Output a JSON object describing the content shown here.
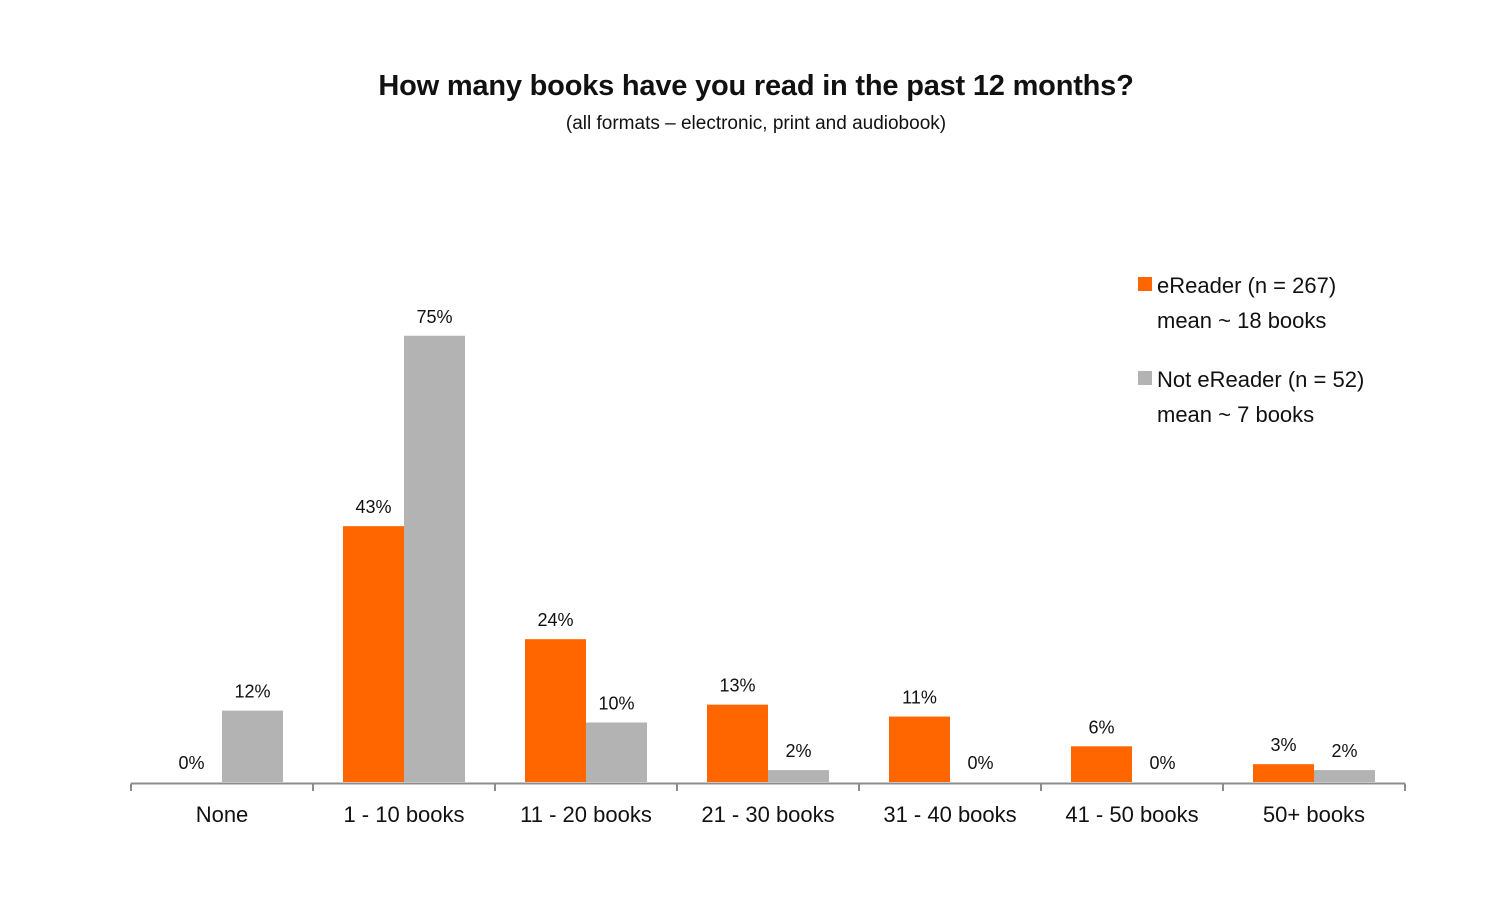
{
  "chart_data": {
    "type": "bar",
    "title": "How many books have you read in the past 12 months?",
    "subtitle": "(all formats – electronic, print and audiobook)",
    "categories": [
      "None",
      "1 - 10 books",
      "11 - 20 books",
      "21 - 30 books",
      "31 - 40 books",
      "41 - 50 books",
      "50+ books"
    ],
    "series": [
      {
        "name": "eReader (n = 267)",
        "note": "mean ~ 18 books",
        "color": "#ff6600",
        "values": [
          0,
          43,
          24,
          13,
          11,
          6,
          3
        ],
        "labels": [
          "0%",
          "43%",
          "24%",
          "13%",
          "11%",
          "6%",
          "3%"
        ]
      },
      {
        "name": "Not eReader (n = 52)",
        "note": "mean ~ 7 books",
        "color": "#b3b3b3",
        "values": [
          12,
          75,
          10,
          2,
          0,
          0,
          2
        ],
        "labels": [
          "12%",
          "75%",
          "10%",
          "2%",
          "0%",
          "0%",
          "2%"
        ]
      }
    ],
    "ylim": [
      0,
      80
    ],
    "grid": false,
    "legend_position": "top-right",
    "xlabel": "",
    "ylabel": ""
  }
}
